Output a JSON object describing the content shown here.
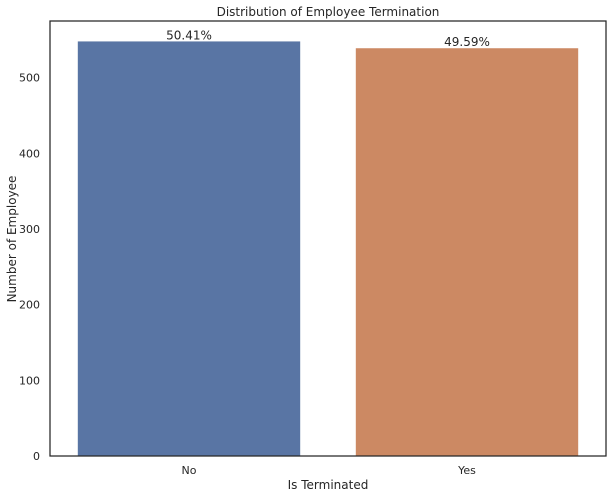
{
  "chart_data": {
    "type": "bar",
    "title": "Distribution of Employee Termination",
    "xlabel": "Is Terminated",
    "ylabel": "Number of Employee",
    "categories": [
      "No",
      "Yes"
    ],
    "values": [
      548,
      539
    ],
    "data_labels": [
      "50.41%",
      "49.59%"
    ],
    "colors": [
      "#5975a4",
      "#cc8963"
    ],
    "ylim": [
      0,
      575
    ],
    "yticks": [
      0,
      100,
      200,
      300,
      400,
      500
    ],
    "grid": false,
    "legend": "none"
  }
}
